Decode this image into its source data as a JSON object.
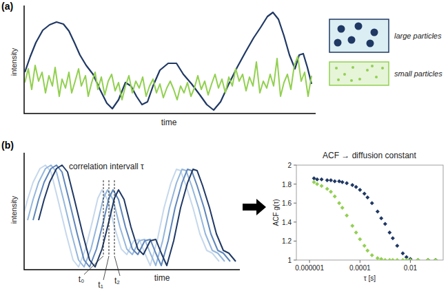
{
  "panel_a": {
    "label": "(a)",
    "y_axis_label": "intensity",
    "x_axis_label": "time",
    "particle_types": [
      {
        "label": "large particles",
        "color": "#1f3864"
      },
      {
        "label": "small particles",
        "color": "#92d050"
      }
    ]
  },
  "panel_b": {
    "label": "(b)",
    "y_axis_label": "intensity",
    "x_axis_label": "time",
    "annotation": "correlation intervall τ",
    "time_points": [
      "t₀",
      "t₁",
      "t₂"
    ]
  },
  "chart_data": {
    "type": "scatter",
    "title": "ACF → diffusion constant",
    "x_label": "τ [s]",
    "y_label": "ACF g(τ)",
    "log": "x",
    "marker": "diamond",
    "xlim": [
      3e-07,
      0.2
    ],
    "xticks": [
      {
        "value": 1e-06,
        "label": "0.000001"
      },
      0.0001,
      0.01
    ],
    "ylim": [
      1,
      2
    ],
    "yticks": [
      1,
      1.2,
      1.4,
      1.6,
      1.8,
      2
    ],
    "x": [
      1.5e-06,
      2e-06,
      3e-06,
      5e-06,
      7e-06,
      1e-05,
      1.5e-05,
      2e-05,
      3e-05,
      5e-05,
      7e-05,
      0.0001,
      0.00015,
      0.0002,
      0.0003,
      0.0005,
      0.0007,
      0.001,
      0.0015,
      0.002,
      0.003,
      0.005,
      0.007,
      0.01,
      0.02,
      0.05,
      0.1
    ],
    "series": [
      {
        "color": "#1f3864",
        "values": [
          1.86,
          1.85,
          1.85,
          1.84,
          1.84,
          1.83,
          1.83,
          1.82,
          1.81,
          1.79,
          1.77,
          1.74,
          1.7,
          1.66,
          1.6,
          1.51,
          1.44,
          1.38,
          1.29,
          1.23,
          1.15,
          1.07,
          1.03,
          1.01,
          1.0,
          1.0,
          1.0
        ]
      },
      {
        "color": "#92d050",
        "values": [
          1.82,
          1.8,
          1.78,
          1.75,
          1.72,
          1.67,
          1.6,
          1.55,
          1.47,
          1.36,
          1.29,
          1.22,
          1.15,
          1.1,
          1.05,
          1.02,
          1.01,
          1.0,
          1.0,
          1.0,
          1.0,
          1.0,
          1.0,
          1.0,
          1.0,
          1.0,
          1.0
        ]
      }
    ]
  }
}
